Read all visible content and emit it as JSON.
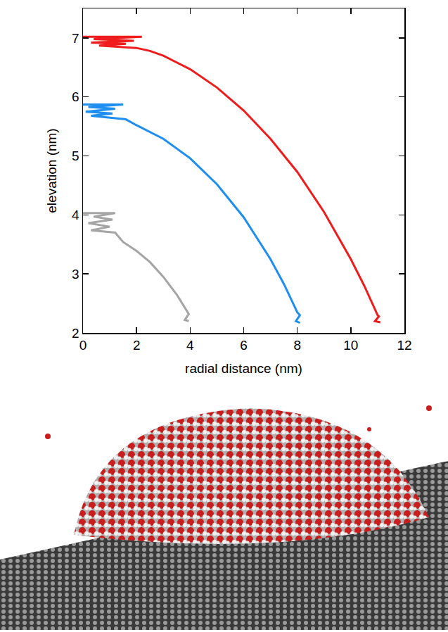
{
  "chart_data": {
    "type": "line",
    "xlabel": "radial distance (nm)",
    "ylabel": "elevation (nm)",
    "xlim": [
      0,
      12
    ],
    "xticks": [
      0,
      2,
      4,
      6,
      8,
      10,
      12
    ],
    "ylim": [
      2,
      7.5
    ],
    "yticks": [
      2,
      3,
      4,
      5,
      6,
      7
    ],
    "grid": false,
    "series": [
      {
        "color": "#ee1c1c",
        "line_style": "solid",
        "x": [
          0,
          2.2,
          0.4,
          1.9,
          0.3,
          1.6,
          0.6,
          2.0,
          2.5,
          3,
          4,
          5,
          6,
          7,
          8,
          9,
          10,
          10.5,
          11,
          11.05,
          10.9,
          11.1
        ],
        "values": [
          7.02,
          7.02,
          6.98,
          6.95,
          6.92,
          6.9,
          6.87,
          6.83,
          6.78,
          6.7,
          6.47,
          6.16,
          5.77,
          5.29,
          4.73,
          4.05,
          3.25,
          2.8,
          2.3,
          2.28,
          2.2,
          2.18
        ]
      },
      {
        "color": "#1e8ef0",
        "line_style": "solid",
        "x": [
          0,
          1.5,
          0.2,
          1.2,
          0.1,
          1.1,
          0.3,
          1.6,
          2,
          3,
          4,
          5,
          6,
          7,
          7.5,
          8,
          8.1,
          7.95,
          8.1
        ],
        "values": [
          5.87,
          5.87,
          5.83,
          5.8,
          5.75,
          5.72,
          5.68,
          5.62,
          5.52,
          5.29,
          4.96,
          4.52,
          3.96,
          3.25,
          2.83,
          2.35,
          2.3,
          2.2,
          2.17
        ]
      },
      {
        "color": "#a5a5a5",
        "line_style": "solid",
        "x": [
          0,
          1.2,
          0.4,
          1.1,
          0.2,
          1.0,
          0.3,
          1.2,
          1.5,
          2,
          2.5,
          3,
          3.5,
          3.85,
          3.95,
          3.8,
          3.95
        ],
        "values": [
          4.03,
          4.03,
          3.97,
          3.92,
          3.86,
          3.8,
          3.74,
          3.7,
          3.54,
          3.39,
          3.2,
          2.95,
          2.65,
          2.4,
          2.32,
          2.22,
          2.2
        ]
      }
    ]
  }
}
